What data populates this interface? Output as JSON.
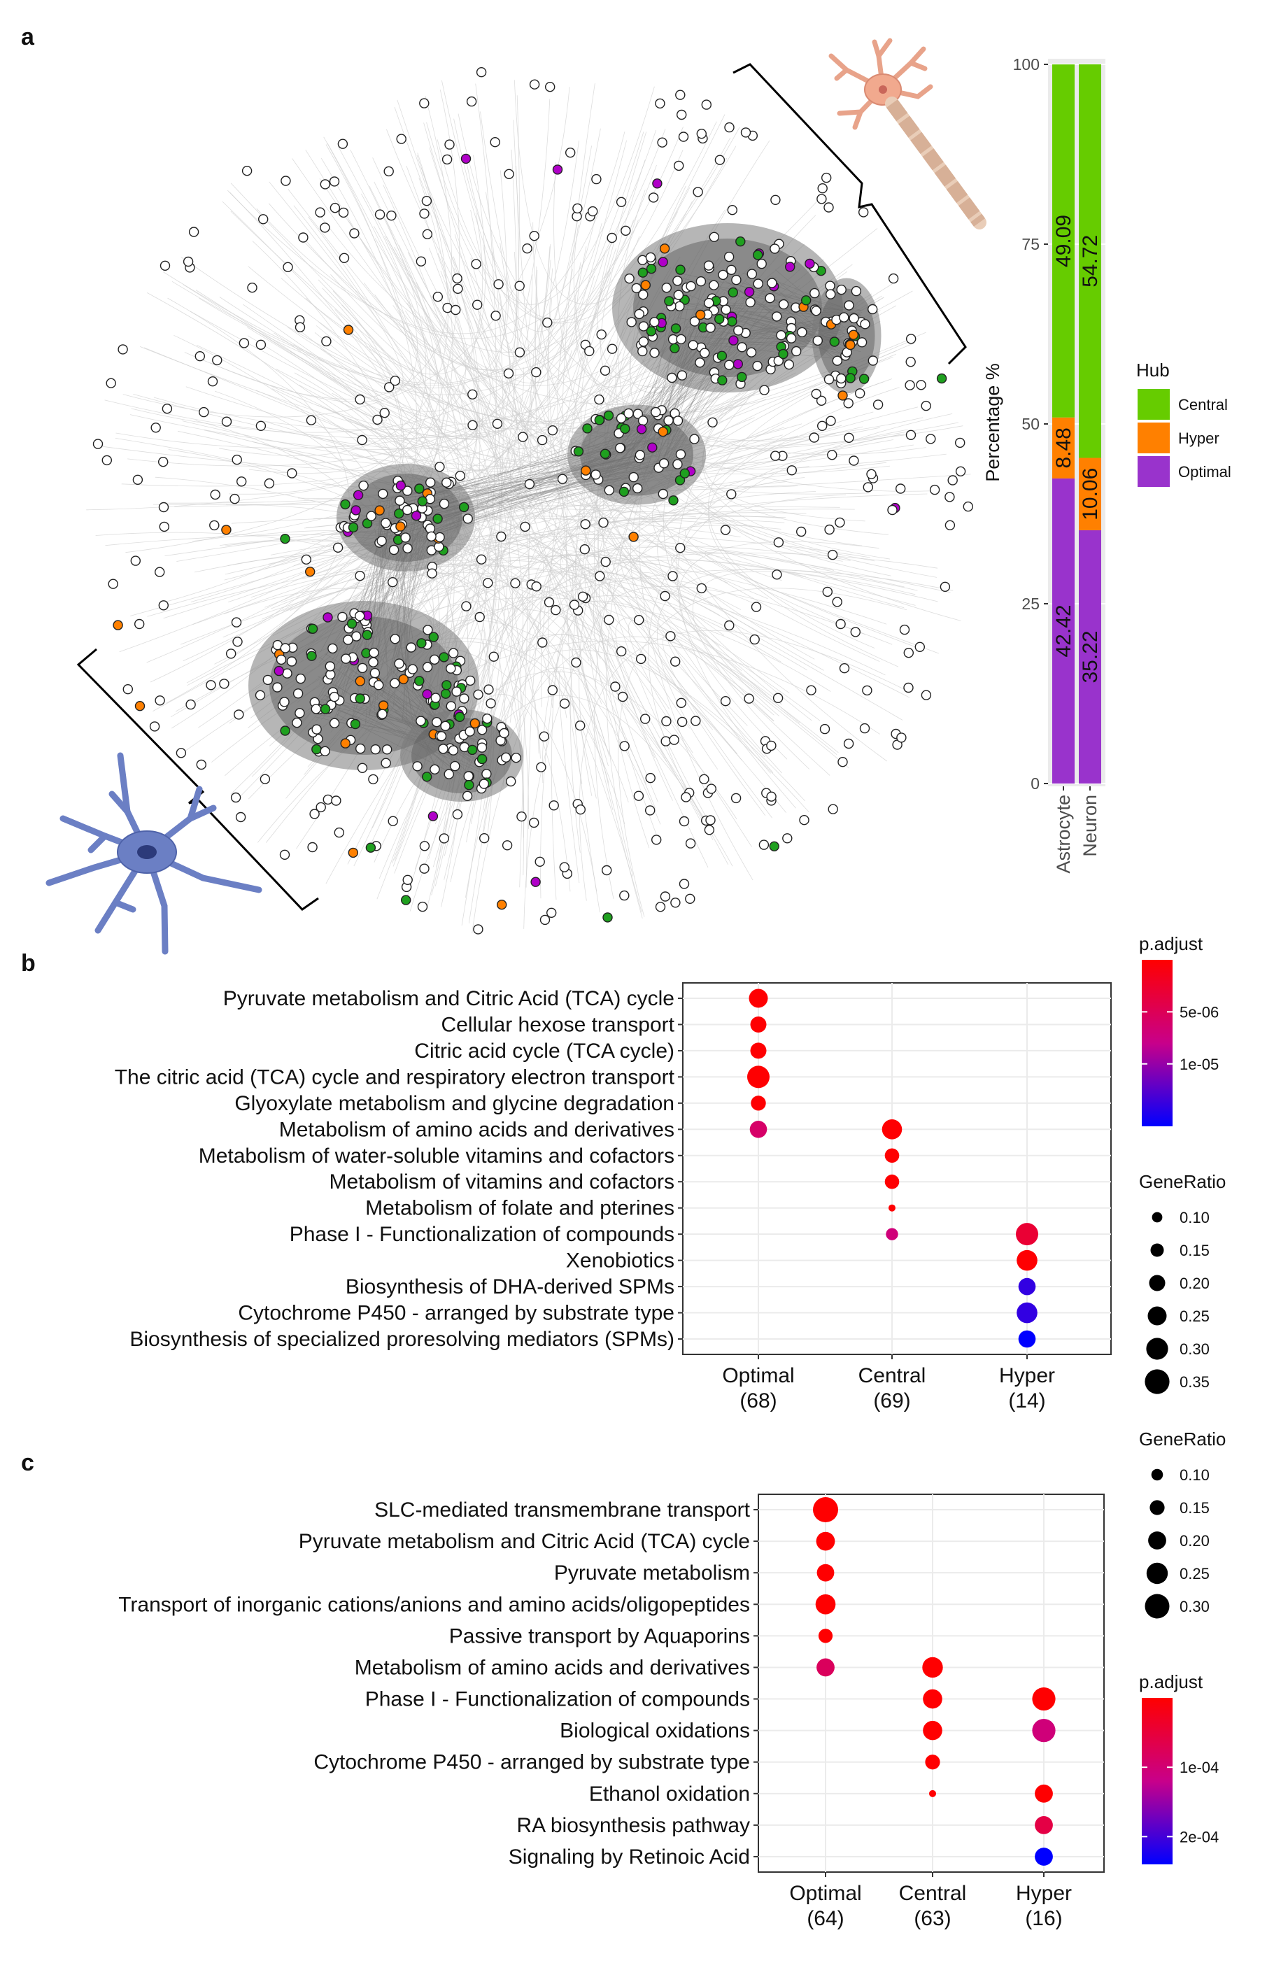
{
  "panels": {
    "a": "a",
    "b": "b",
    "c": "c"
  },
  "colors": {
    "central": "#66cc00",
    "hyper": "#ff8000",
    "optimal": "#9933cc",
    "net_central": "#1fa01f",
    "net_hyper": "#ff8000",
    "net_optimal": "#b000c8",
    "padj_high": "#ff0000",
    "padj_low": "#0000ff",
    "grid": "#ebebeb"
  },
  "network": {
    "description_icons": [
      "neuron-icon",
      "astrocyte-icon"
    ]
  },
  "chart_data": [
    {
      "id": "a_bar",
      "type": "bar",
      "stacked": true,
      "categories": [
        "Astrocyte",
        "Neuron"
      ],
      "series": [
        {
          "name": "Optimal",
          "values": [
            42.42,
            35.22
          ]
        },
        {
          "name": "Hyper",
          "values": [
            8.48,
            10.06
          ]
        },
        {
          "name": "Central",
          "values": [
            49.09,
            54.72
          ]
        }
      ],
      "value_labels": {
        "Optimal": [
          "42.42",
          "35.22"
        ],
        "Hyper": [
          "8.48",
          "10.06"
        ],
        "Central": [
          "49.09",
          "54.72"
        ]
      },
      "ylabel": "Percentage %",
      "ylim": [
        0,
        100
      ],
      "yticks": [
        "0",
        "25",
        "50",
        "75",
        "100"
      ],
      "legend": {
        "title": "Hub",
        "entries": [
          "Central",
          "Hyper",
          "Optimal"
        ],
        "placement": "right"
      }
    },
    {
      "id": "b_dot",
      "type": "scatter",
      "categories": [
        "Optimal",
        "Central",
        "Hyper"
      ],
      "category_counts": [
        "(68)",
        "(69)",
        "(14)"
      ],
      "terms": [
        "Pyruvate metabolism and Citric Acid (TCA) cycle",
        "Cellular hexose transport",
        "Citric acid cycle (TCA cycle)",
        "The citric acid (TCA) cycle and respiratory electron transport",
        "Glyoxylate metabolism and glycine degradation",
        "Metabolism of amino acids and derivatives",
        "Metabolism of water-soluble vitamins and cofactors",
        "Metabolism of vitamins and cofactors",
        "Metabolism of folate and pterines",
        "Phase I - Functionalization of compounds",
        "Xenobiotics",
        "Biosynthesis of DHA-derived SPMs",
        "Cytochrome P450 - arranged by substrate type",
        "Biosynthesis of specialized proresolving mediators (SPMs)"
      ],
      "points": [
        {
          "term": 0,
          "cat": 0,
          "gene_ratio": 0.25,
          "p_adjust": 1e-07
        },
        {
          "term": 1,
          "cat": 0,
          "gene_ratio": 0.2,
          "p_adjust": 1e-07
        },
        {
          "term": 2,
          "cat": 0,
          "gene_ratio": 0.2,
          "p_adjust": 1e-07
        },
        {
          "term": 3,
          "cat": 0,
          "gene_ratio": 0.31,
          "p_adjust": 1e-07
        },
        {
          "term": 4,
          "cat": 0,
          "gene_ratio": 0.18,
          "p_adjust": 1e-07
        },
        {
          "term": 5,
          "cat": 0,
          "gene_ratio": 0.22,
          "p_adjust": 6e-06
        },
        {
          "term": 5,
          "cat": 1,
          "gene_ratio": 0.27,
          "p_adjust": 1e-07
        },
        {
          "term": 6,
          "cat": 1,
          "gene_ratio": 0.17,
          "p_adjust": 1e-07
        },
        {
          "term": 7,
          "cat": 1,
          "gene_ratio": 0.17,
          "p_adjust": 1e-07
        },
        {
          "term": 8,
          "cat": 1,
          "gene_ratio": 0.04,
          "p_adjust": 1e-07
        },
        {
          "term": 9,
          "cat": 1,
          "gene_ratio": 0.13,
          "p_adjust": 7e-06
        },
        {
          "term": 9,
          "cat": 2,
          "gene_ratio": 0.31,
          "p_adjust": 3e-06
        },
        {
          "term": 10,
          "cat": 2,
          "gene_ratio": 0.28,
          "p_adjust": 1e-07
        },
        {
          "term": 11,
          "cat": 2,
          "gene_ratio": 0.22,
          "p_adjust": 1.4e-05
        },
        {
          "term": 12,
          "cat": 2,
          "gene_ratio": 0.28,
          "p_adjust": 1.4e-05
        },
        {
          "term": 13,
          "cat": 2,
          "gene_ratio": 0.22,
          "p_adjust": 1.6e-05
        }
      ],
      "p_adjust_range": [
        0,
        1.6e-05
      ],
      "p_adjust_ticks": [
        {
          "value": 5e-06,
          "label": "5e-06"
        },
        {
          "value": 1e-05,
          "label": "1e-05"
        }
      ],
      "gene_ratio_range": [
        0.04,
        0.36
      ],
      "gene_ratio_ticks": [
        "0.10",
        "0.15",
        "0.20",
        "0.25",
        "0.30",
        "0.35"
      ],
      "legend_titles": {
        "color": "p.adjust",
        "size": "GeneRatio"
      },
      "legend_order": [
        "color",
        "size"
      ]
    },
    {
      "id": "c_dot",
      "type": "scatter",
      "categories": [
        "Optimal",
        "Central",
        "Hyper"
      ],
      "category_counts": [
        "(64)",
        "(63)",
        "(16)"
      ],
      "terms": [
        "SLC-mediated transmembrane transport",
        "Pyruvate metabolism and Citric Acid (TCA) cycle",
        "Pyruvate metabolism",
        "Transport of inorganic cations/anions and amino acids/oligopeptides",
        "Passive transport by Aquaporins",
        "Metabolism of amino acids and derivatives",
        "Phase I - Functionalization of compounds",
        "Biological oxidations",
        "Cytochrome P450 - arranged by substrate type",
        "Ethanol oxidation",
        "RA biosynthesis pathway",
        "Signaling by Retinoic Acid"
      ],
      "points": [
        {
          "term": 0,
          "cat": 0,
          "gene_ratio": 0.31,
          "p_adjust": 1e-06
        },
        {
          "term": 1,
          "cat": 0,
          "gene_ratio": 0.21,
          "p_adjust": 1e-06
        },
        {
          "term": 2,
          "cat": 0,
          "gene_ratio": 0.19,
          "p_adjust": 1e-06
        },
        {
          "term": 3,
          "cat": 0,
          "gene_ratio": 0.23,
          "p_adjust": 1e-06
        },
        {
          "term": 4,
          "cat": 0,
          "gene_ratio": 0.14,
          "p_adjust": 1e-06
        },
        {
          "term": 5,
          "cat": 0,
          "gene_ratio": 0.2,
          "p_adjust": 8e-05
        },
        {
          "term": 5,
          "cat": 1,
          "gene_ratio": 0.24,
          "p_adjust": 1e-06
        },
        {
          "term": 6,
          "cat": 1,
          "gene_ratio": 0.22,
          "p_adjust": 1e-06
        },
        {
          "term": 7,
          "cat": 1,
          "gene_ratio": 0.22,
          "p_adjust": 1e-06
        },
        {
          "term": 8,
          "cat": 1,
          "gene_ratio": 0.15,
          "p_adjust": 1e-06
        },
        {
          "term": 9,
          "cat": 1,
          "gene_ratio": 0.03,
          "p_adjust": 1e-06
        },
        {
          "term": 6,
          "cat": 2,
          "gene_ratio": 0.28,
          "p_adjust": 1e-06
        },
        {
          "term": 7,
          "cat": 2,
          "gene_ratio": 0.28,
          "p_adjust": 0.000105
        },
        {
          "term": 9,
          "cat": 2,
          "gene_ratio": 0.2,
          "p_adjust": 1e-06
        },
        {
          "term": 10,
          "cat": 2,
          "gene_ratio": 0.2,
          "p_adjust": 6e-05
        },
        {
          "term": 11,
          "cat": 2,
          "gene_ratio": 0.2,
          "p_adjust": 0.00024
        }
      ],
      "p_adjust_range": [
        0,
        0.00024
      ],
      "p_adjust_ticks": [
        {
          "value": 0.0001,
          "label": "1e-04"
        },
        {
          "value": 0.0002,
          "label": "2e-04"
        }
      ],
      "gene_ratio_range": [
        0.03,
        0.31
      ],
      "gene_ratio_ticks": [
        "0.10",
        "0.15",
        "0.20",
        "0.25",
        "0.30"
      ],
      "legend_titles": {
        "color": "p.adjust",
        "size": "GeneRatio"
      },
      "legend_order": [
        "size",
        "color"
      ]
    }
  ]
}
